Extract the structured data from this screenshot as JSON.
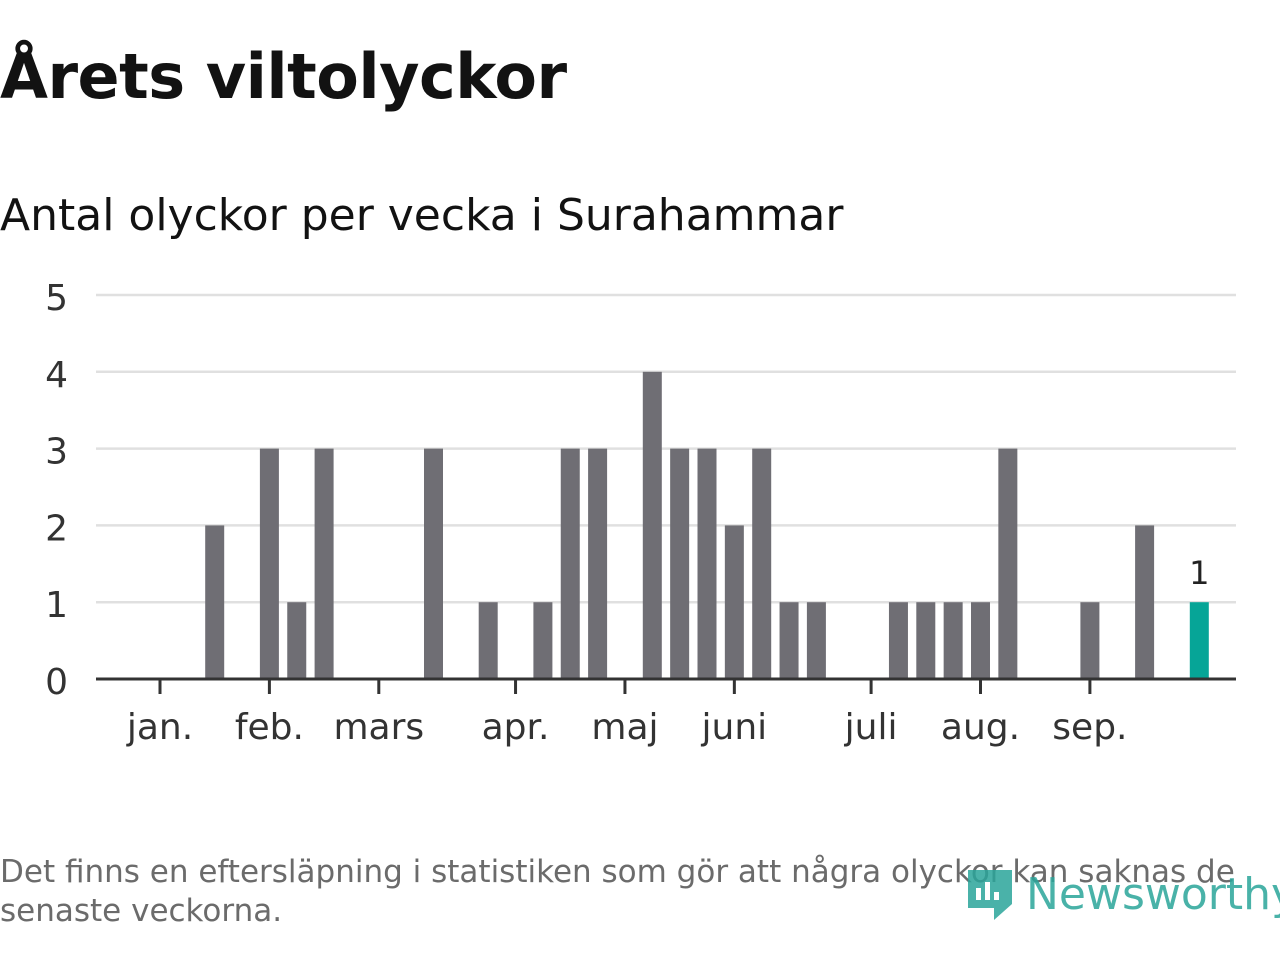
{
  "page": {
    "title": "Årets viltolyckor",
    "subtitle": "Antal olyckor per vecka i Surahammar",
    "footnote": "Det finns en eftersläpning i statistiken som gör att några olyckor kan saknas de senaste veckorna.",
    "logo_text": "Newsworthy"
  },
  "colors": {
    "bar": "#6f6e74",
    "highlight": "#06a597",
    "grid": "#e0e0e0",
    "axis": "#333333",
    "logo": "#2aa59a"
  },
  "chart_data": {
    "type": "bar",
    "title": "Antal olyckor per vecka i Surahammar",
    "xlabel": "",
    "ylabel": "",
    "ylim": [
      0,
      5
    ],
    "yticks": [
      0,
      1,
      2,
      3,
      4,
      5
    ],
    "grid": true,
    "week_start": 1,
    "values": [
      0,
      0,
      2,
      0,
      3,
      1,
      3,
      0,
      0,
      0,
      3,
      0,
      1,
      0,
      1,
      3,
      3,
      0,
      4,
      3,
      3,
      2,
      3,
      1,
      1,
      0,
      0,
      1,
      1,
      1,
      1,
      3,
      0,
      0,
      1,
      0,
      2,
      0,
      1
    ],
    "highlight_last": true,
    "annotation": {
      "text": "1",
      "week": 39
    },
    "month_ticks": [
      {
        "label": "jan.",
        "week": 1
      },
      {
        "label": "feb.",
        "week": 5
      },
      {
        "label": "mars",
        "week": 9
      },
      {
        "label": "apr.",
        "week": 14
      },
      {
        "label": "maj",
        "week": 18
      },
      {
        "label": "juni",
        "week": 22
      },
      {
        "label": "juli",
        "week": 27
      },
      {
        "label": "aug.",
        "week": 31
      },
      {
        "label": "sep.",
        "week": 35
      }
    ]
  }
}
